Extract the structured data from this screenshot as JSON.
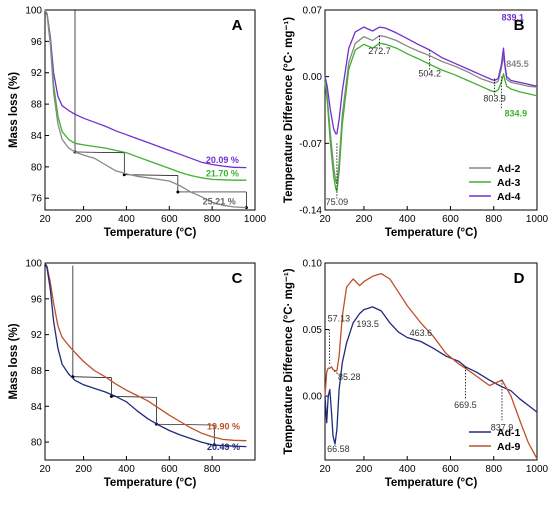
{
  "chart_data": [
    {
      "panel": "A",
      "type": "line",
      "xlabel": "Temperature (°C)",
      "ylabel": "Mass loss (%)",
      "xlim": [
        20,
        1000
      ],
      "ylim": [
        74.5,
        100
      ],
      "xticks": [
        20,
        200,
        400,
        600,
        800,
        1000
      ],
      "yticks": [
        76,
        80,
        84,
        88,
        92,
        96,
        100
      ],
      "series": [
        {
          "name": "Ad-4",
          "color": "#7030d0",
          "x": [
            20,
            30,
            45,
            60,
            80,
            100,
            130,
            160,
            200,
            250,
            300,
            350,
            400,
            450,
            500,
            550,
            600,
            650,
            700,
            750,
            800,
            850,
            900,
            960
          ],
          "y": [
            100,
            99.5,
            96.5,
            92,
            89,
            87.8,
            87.2,
            86.7,
            86.2,
            85.7,
            85.2,
            84.6,
            84.1,
            83.6,
            83.1,
            82.6,
            82.1,
            81.6,
            81.1,
            80.6,
            80.3,
            80.1,
            79.95,
            79.9
          ]
        },
        {
          "name": "Ad-3",
          "color": "#40b030",
          "x": [
            20,
            30,
            45,
            60,
            80,
            100,
            130,
            160,
            200,
            250,
            300,
            350,
            400,
            450,
            500,
            550,
            600,
            650,
            700,
            750,
            800,
            850,
            900,
            960
          ],
          "y": [
            100,
            99.5,
            96,
            90.5,
            86.5,
            84.5,
            83.5,
            83.0,
            82.8,
            82.6,
            82.4,
            82.1,
            81.8,
            81.3,
            80.8,
            80.3,
            79.8,
            79.3,
            78.9,
            78.6,
            78.4,
            78.35,
            78.3,
            78.3
          ]
        },
        {
          "name": "Ad-2",
          "color": "#888888",
          "x": [
            20,
            30,
            45,
            60,
            80,
            100,
            130,
            160,
            200,
            250,
            300,
            350,
            400,
            450,
            500,
            550,
            600,
            650,
            700,
            750,
            800,
            850,
            900,
            960
          ],
          "y": [
            100,
            99.3,
            95.5,
            89.5,
            85.5,
            83.5,
            82.4,
            81.9,
            81.5,
            81.1,
            80.3,
            79.5,
            79.1,
            78.8,
            78.6,
            78.4,
            78.2,
            77.6,
            76.8,
            76.2,
            75.5,
            75.1,
            74.9,
            74.8
          ]
        }
      ],
      "annotations": [
        {
          "text": "20.09 %",
          "color": "#7030d0"
        },
        {
          "text": "21.70 %",
          "color": "#40b030"
        },
        {
          "text": "25.21 %",
          "color": "#666666"
        }
      ],
      "panel_label": "A"
    },
    {
      "panel": "B",
      "type": "line",
      "xlabel": "Temperature (°C)",
      "ylabel": "Temperature Difference (°C· mg⁻¹)",
      "xlim": [
        20,
        1000
      ],
      "ylim": [
        -0.14,
        0.07
      ],
      "xticks": [
        20,
        200,
        400,
        600,
        800,
        1000
      ],
      "yticks": [
        -0.14,
        -0.07,
        0.0,
        0.07
      ],
      "ytick_labels": [
        "-0.14",
        "-0.07",
        "0.00",
        "0.07"
      ],
      "series": [
        {
          "name": "Ad-2",
          "color": "#888888",
          "x": [
            20,
            30,
            45,
            60,
            70,
            75,
            85,
            100,
            130,
            160,
            200,
            240,
            272,
            300,
            350,
            400,
            450,
            504,
            560,
            620,
            680,
            740,
            790,
            804,
            820,
            835,
            845,
            852,
            860,
            880,
            920,
            960,
            1000
          ],
          "y": [
            0.0,
            -0.02,
            -0.06,
            -0.095,
            -0.11,
            -0.112,
            -0.09,
            -0.04,
            0.015,
            0.035,
            0.042,
            0.038,
            0.043,
            0.042,
            0.038,
            0.032,
            0.027,
            0.022,
            0.016,
            0.011,
            0.005,
            -0.002,
            -0.006,
            -0.007,
            -0.005,
            0.008,
            0.022,
            0.01,
            -0.003,
            -0.006,
            -0.008,
            -0.01,
            -0.011
          ]
        },
        {
          "name": "Ad-3",
          "color": "#40b030",
          "x": [
            20,
            30,
            45,
            60,
            70,
            75,
            85,
            100,
            130,
            160,
            200,
            240,
            272,
            300,
            350,
            400,
            450,
            504,
            560,
            620,
            680,
            740,
            790,
            804,
            820,
            835,
            845,
            852,
            860,
            880,
            920,
            960,
            1000
          ],
          "y": [
            -0.005,
            -0.025,
            -0.07,
            -0.105,
            -0.118,
            -0.12,
            -0.1,
            -0.05,
            0.008,
            0.028,
            0.034,
            0.03,
            0.035,
            0.034,
            0.03,
            0.024,
            0.019,
            0.013,
            0.007,
            0.002,
            -0.004,
            -0.01,
            -0.015,
            -0.016,
            -0.014,
            -0.006,
            0.003,
            -0.004,
            -0.01,
            -0.013,
            -0.016,
            -0.018,
            -0.02
          ]
        },
        {
          "name": "Ad-4",
          "color": "#7030d0",
          "x": [
            20,
            30,
            45,
            60,
            70,
            75,
            85,
            100,
            130,
            160,
            200,
            240,
            272,
            300,
            350,
            400,
            450,
            504,
            560,
            620,
            680,
            740,
            790,
            804,
            820,
            835,
            845,
            852,
            860,
            880,
            920,
            960,
            1000
          ],
          "y": [
            0.0,
            -0.01,
            -0.035,
            -0.055,
            -0.06,
            -0.06,
            -0.045,
            -0.015,
            0.03,
            0.047,
            0.052,
            0.048,
            0.052,
            0.051,
            0.046,
            0.04,
            0.034,
            0.028,
            0.02,
            0.014,
            0.008,
            0.002,
            -0.003,
            -0.004,
            -0.002,
            0.012,
            0.03,
            0.012,
            0.0,
            -0.004,
            -0.006,
            -0.008,
            -0.01
          ]
        }
      ],
      "annotations": [
        "75.09",
        "272.7",
        "504.2",
        "803.9",
        "834.9",
        "839.1",
        "845.5"
      ],
      "legend": [
        "Ad-2",
        "Ad-3",
        "Ad-4"
      ],
      "legend_position": "bottom-right",
      "panel_label": "B"
    },
    {
      "panel": "C",
      "type": "line",
      "xlabel": "Temperature (°C)",
      "ylabel": "Mass loss (%)",
      "xlim": [
        20,
        1000
      ],
      "ylim": [
        78,
        100
      ],
      "xticks": [
        20,
        200,
        400,
        600,
        800
      ],
      "yticks": [
        80,
        84,
        88,
        92,
        96,
        100
      ],
      "series": [
        {
          "name": "Ad-9",
          "color": "#c0502a",
          "x": [
            20,
            30,
            45,
            60,
            80,
            100,
            130,
            160,
            200,
            250,
            300,
            350,
            400,
            450,
            500,
            550,
            600,
            650,
            700,
            750,
            800,
            850,
            900,
            960
          ],
          "y": [
            100,
            99.6,
            97.8,
            95.5,
            93.0,
            91.7,
            90.8,
            90.0,
            89.0,
            88.0,
            87.3,
            86.5,
            85.8,
            85.2,
            84.6,
            83.8,
            83.0,
            82.3,
            81.6,
            81.0,
            80.6,
            80.3,
            80.2,
            80.15
          ]
        },
        {
          "name": "Ad-1",
          "color": "#202a7a",
          "x": [
            20,
            30,
            45,
            60,
            80,
            100,
            130,
            160,
            200,
            250,
            300,
            350,
            400,
            450,
            500,
            550,
            600,
            650,
            700,
            750,
            800,
            850,
            900,
            960
          ],
          "y": [
            100,
            99.4,
            97.0,
            93.5,
            90.5,
            88.7,
            87.6,
            86.9,
            86.4,
            86.0,
            85.6,
            85.1,
            84.5,
            83.5,
            82.6,
            81.9,
            81.3,
            80.8,
            80.4,
            80.0,
            79.7,
            79.6,
            79.55,
            79.5
          ]
        }
      ],
      "annotations": [
        {
          "text": "19.90 %",
          "color": "#c0502a"
        },
        {
          "text": "20.49 %",
          "color": "#202a7a"
        }
      ],
      "panel_label": "C"
    },
    {
      "panel": "D",
      "type": "line",
      "xlabel": "Temperature (°C)",
      "ylabel": "Temperature Difference (°C· mg⁻¹)",
      "xlim": [
        20,
        1000
      ],
      "ylim": [
        -0.048,
        0.1
      ],
      "xticks": [
        20,
        200,
        400,
        600,
        800,
        1000
      ],
      "yticks": [
        0.0,
        0.05,
        0.1
      ],
      "ytick_labels": [
        "0.00",
        "0.05",
        "0.10"
      ],
      "series": [
        {
          "name": "Ad-1",
          "color": "#202a7a",
          "x": [
            20,
            28,
            35,
            42,
            50,
            57,
            66,
            75,
            85,
            100,
            120,
            150,
            180,
            200,
            240,
            280,
            320,
            360,
            400,
            463,
            520,
            580,
            640,
            669,
            720,
            780,
            838,
            880,
            920,
            960,
            1000
          ],
          "y": [
            0.0,
            -0.02,
            0.0,
            0.005,
            -0.012,
            -0.03,
            -0.036,
            -0.025,
            0.005,
            0.025,
            0.04,
            0.055,
            0.062,
            0.065,
            0.067,
            0.064,
            0.055,
            0.048,
            0.044,
            0.041,
            0.036,
            0.03,
            0.026,
            0.022,
            0.018,
            0.012,
            0.007,
            0.004,
            -0.002,
            -0.007,
            -0.012
          ]
        },
        {
          "name": "Ad-9",
          "color": "#c0502a",
          "x": [
            20,
            28,
            35,
            42,
            50,
            57,
            66,
            75,
            85,
            100,
            120,
            150,
            180,
            200,
            240,
            280,
            320,
            360,
            400,
            463,
            520,
            580,
            640,
            669,
            720,
            780,
            838,
            880,
            920,
            960,
            1000
          ],
          "y": [
            0.0,
            0.018,
            0.021,
            0.021,
            0.022,
            0.02,
            0.019,
            0.019,
            0.03,
            0.06,
            0.082,
            0.088,
            0.083,
            0.086,
            0.09,
            0.092,
            0.088,
            0.078,
            0.068,
            0.055,
            0.045,
            0.032,
            0.024,
            0.021,
            0.015,
            0.008,
            0.012,
            0.0,
            -0.018,
            -0.035,
            -0.047
          ]
        }
      ],
      "annotations": [
        "57.13",
        "193.5",
        "85.28",
        "463.6",
        "66.58",
        "669.5",
        "837.9"
      ],
      "legend": [
        "Ad-1",
        "Ad-9"
      ],
      "legend_position": "bottom-right",
      "panel_label": "D"
    }
  ]
}
